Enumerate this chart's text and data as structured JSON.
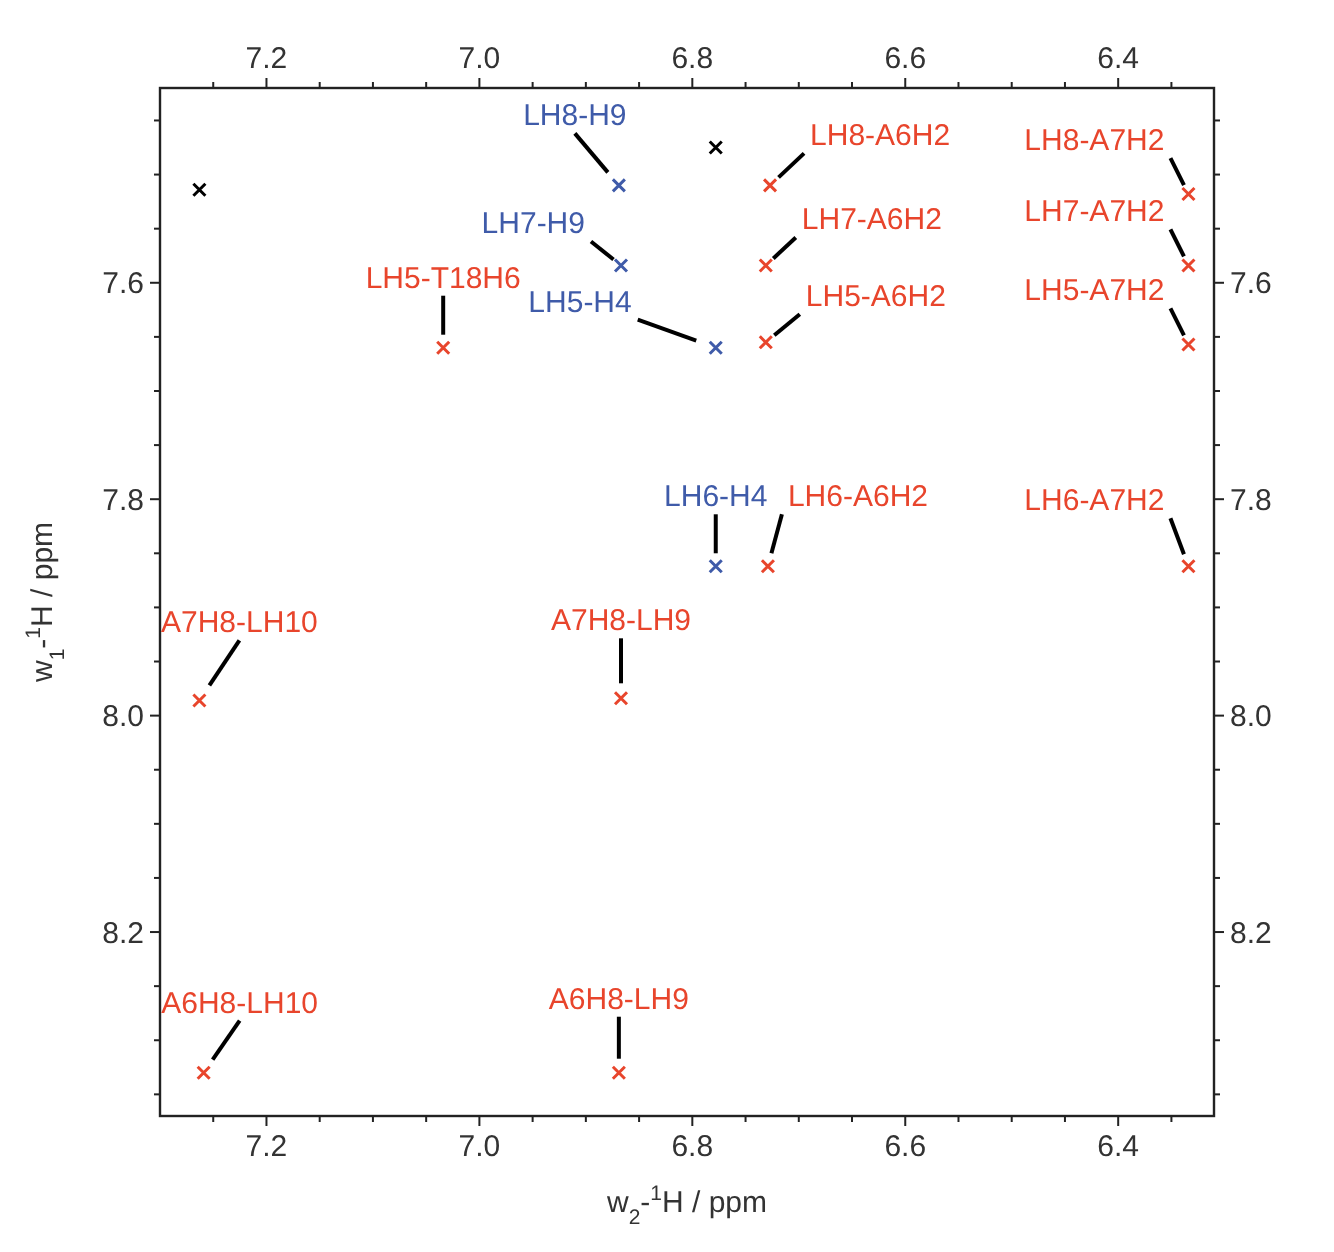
{
  "chart_data": {
    "type": "scatter",
    "xlabel": "w$_{2}$-$^{1}$H / ppm",
    "ylabel": "w$_{1}$-$^{1}$H / ppm",
    "marker": "cross",
    "xlim": [
      7.3,
      6.31
    ],
    "x2lim": [
      7.3,
      6.31
    ],
    "xticks": [
      {
        "value": 7.25,
        "label": null
      },
      7.2,
      {
        "value": 7.15,
        "label": null
      },
      {
        "value": 7.1,
        "label": null
      },
      {
        "value": 7.05,
        "label": null
      },
      {
        "value": 7,
        "label": "7.0"
      },
      {
        "value": 6.95,
        "label": null
      },
      {
        "value": 6.9,
        "label": null
      },
      {
        "value": 6.85,
        "label": null
      },
      6.8,
      {
        "value": 6.75,
        "label": null
      },
      {
        "value": 6.7,
        "label": null
      },
      {
        "value": 6.65,
        "label": null
      },
      6.6,
      {
        "value": 6.55,
        "label": null
      },
      {
        "value": 6.5,
        "label": null
      },
      {
        "value": 6.45,
        "label": null
      },
      6.4,
      {
        "value": 6.35,
        "label": null
      }
    ],
    "x2ticks": [
      {
        "value": 7.25,
        "label": null
      },
      7.2,
      {
        "value": 7.15,
        "label": null
      },
      {
        "value": 7.1,
        "label": null
      },
      {
        "value": 7.05,
        "label": null
      },
      {
        "value": 7,
        "label": "7.0"
      },
      {
        "value": 6.95,
        "label": null
      },
      {
        "value": 6.9,
        "label": null
      },
      {
        "value": 6.85,
        "label": null
      },
      6.8,
      {
        "value": 6.75,
        "label": null
      },
      {
        "value": 6.7,
        "label": null
      },
      {
        "value": 6.65,
        "label": null
      },
      6.6,
      {
        "value": 6.55,
        "label": null
      },
      {
        "value": 6.5,
        "label": null
      },
      {
        "value": 6.45,
        "label": null
      },
      6.4,
      {
        "value": 6.35,
        "label": null
      }
    ],
    "ylim": [
      8.37,
      7.42
    ],
    "y2lim": [
      8.37,
      7.42
    ],
    "yticks": [
      {
        "value": 7.45,
        "label": null
      },
      {
        "value": 7.5,
        "label": null
      },
      {
        "value": 7.55,
        "label": null
      },
      7.6,
      {
        "value": 7.65,
        "label": null
      },
      {
        "value": 7.7,
        "label": null
      },
      {
        "value": 7.75,
        "label": null
      },
      7.8,
      {
        "value": 7.85,
        "label": null
      },
      {
        "value": 7.9,
        "label": null
      },
      {
        "value": 7.95,
        "label": null
      },
      {
        "value": 8,
        "label": "8.0"
      },
      {
        "value": 8.05,
        "label": null
      },
      {
        "value": 8.1,
        "label": null
      },
      {
        "value": 8.15,
        "label": null
      },
      8.2,
      {
        "value": 8.25,
        "label": null
      },
      {
        "value": 8.3,
        "label": null
      },
      {
        "value": 8.35,
        "label": null
      }
    ],
    "y2ticks": [
      {
        "value": 7.45,
        "label": null
      },
      {
        "value": 7.5,
        "label": null
      },
      {
        "value": 7.55,
        "label": null
      },
      7.6,
      {
        "value": 7.65,
        "label": null
      },
      {
        "value": 7.7,
        "label": null
      },
      {
        "value": 7.75,
        "label": null
      },
      7.8,
      {
        "value": 7.85,
        "label": null
      },
      {
        "value": 7.9,
        "label": null
      },
      {
        "value": 7.95,
        "label": null
      },
      {
        "value": 8,
        "label": "8.0"
      },
      {
        "value": 8.05,
        "label": null
      },
      {
        "value": 8.1,
        "label": null
      },
      {
        "value": 8.15,
        "label": null
      },
      8.2,
      {
        "value": 8.25,
        "label": null
      },
      {
        "value": 8.3,
        "label": null
      },
      {
        "value": 8.35,
        "label": null
      }
    ],
    "series": [
      {
        "color": "#3f5ba9",
        "x": [
          6.869,
          6.867,
          6.778,
          6.778
        ],
        "values": [
          7.51,
          7.584,
          7.66,
          7.862
        ]
      },
      {
        "color": "#e8452c",
        "x": [
          7.034,
          6.727,
          6.731,
          6.731,
          6.729,
          6.334,
          6.334,
          6.334,
          6.334,
          7.263,
          6.867,
          7.259,
          6.869
        ],
        "values": [
          7.66,
          7.51,
          7.584,
          7.655,
          7.862,
          7.518,
          7.584,
          7.657,
          7.862,
          7.986,
          7.984,
          8.33,
          8.33
        ]
      },
      {
        "color": "#000000",
        "x": [
          6.778,
          7.263
        ],
        "values": [
          7.475,
          7.514
        ]
      }
    ],
    "annotations": [
      {
        "text": "LH8-H9",
        "x": 6.869,
        "y": 7.51
      },
      {
        "text": "LH7-H9",
        "x": 6.867,
        "y": 7.584
      },
      {
        "text": "LH5-T18H6",
        "x": 7.034,
        "y": 7.66
      },
      {
        "text": "LH5-H4",
        "x": 6.778,
        "y": 7.66
      },
      {
        "text": "LH6-H4",
        "x": 6.778,
        "y": 7.862
      },
      {
        "text": "LH8-A6H2",
        "x": 6.727,
        "y": 7.51
      },
      {
        "text": "LH7-A6H2",
        "x": 6.731,
        "y": 7.584
      },
      {
        "text": "LH5-A6H2",
        "x": 6.731,
        "y": 7.655
      },
      {
        "text": "LH6-A6H2",
        "x": 6.729,
        "y": 7.862
      },
      {
        "text": "LH8-A7H2",
        "x": 6.334,
        "y": 7.518
      },
      {
        "text": "LH7-A7H2",
        "x": 6.334,
        "y": 7.584
      },
      {
        "text": "LH5-A7H2",
        "x": 6.334,
        "y": 7.657
      },
      {
        "text": "LH6-A7H2",
        "x": 6.334,
        "y": 7.862
      },
      {
        "text": "A7H8-LH10",
        "x": 7.263,
        "y": 7.986
      },
      {
        "text": "A7H8-LH9",
        "x": 6.867,
        "y": 7.984
      },
      {
        "text": "A6H8-LH10",
        "x": 7.259,
        "y": 8.33
      },
      {
        "text": "A6H8-LH9",
        "x": 6.869,
        "y": 8.33
      }
    ]
  }
}
